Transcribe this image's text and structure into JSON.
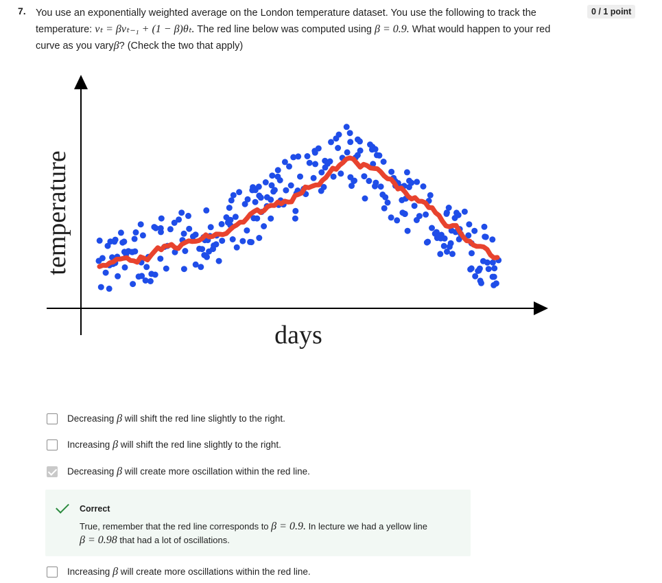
{
  "question": {
    "number": "7.",
    "text_a": "You use an exponentially weighted average on the London temperature dataset. You use the following to track the temperature:",
    "formula": "vₜ = βvₜ₋₁ + (1 − β)θₜ.",
    "text_b": "The red line below was computed using",
    "beta_value": "β = 0.9.",
    "text_c": "What would happen to your red curve as you vary",
    "beta_symbol": "β",
    "text_d": "? (Check the two that apply)"
  },
  "score": "0 / 1 point",
  "figure": {
    "y_label": "temperature",
    "x_label": "days",
    "colors": {
      "points": "#1f4de8",
      "line": "#e8432e",
      "axes": "#000000"
    }
  },
  "options": [
    {
      "prefix": "Decreasing",
      "beta": "β",
      "suffix": "will shift the red line slightly to the right.",
      "checked": false
    },
    {
      "prefix": "Increasing",
      "beta": "β",
      "suffix": "will shift the red line slightly to the right.",
      "checked": false
    },
    {
      "prefix": "Decreasing",
      "beta": "β",
      "suffix": "will create more oscillation within the red line.",
      "checked": true
    },
    {
      "prefix": "Increasing",
      "beta": "β",
      "suffix": "will create more oscillations within the red line.",
      "checked": false
    }
  ],
  "feedback": {
    "status": "Correct",
    "text_a": "True, remember that the red line corresponds to",
    "beta_a": "β = 0.9.",
    "text_b": "In lecture we had a yellow line",
    "beta_b": "β = 0.98",
    "text_c": "that had a lot of oscillations."
  }
}
